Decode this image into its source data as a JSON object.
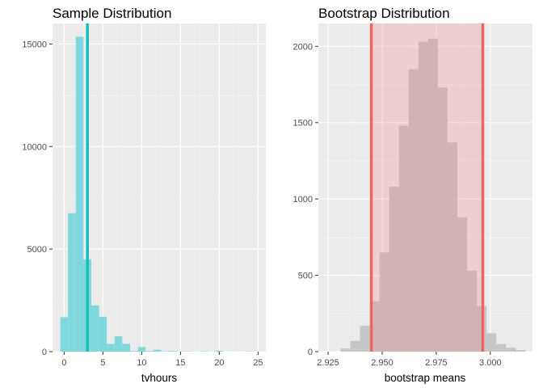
{
  "chart_data": [
    {
      "type": "bar",
      "title": "Sample Distribution",
      "xlabel": "tvhours",
      "ylabel": "",
      "xlim": [
        -1.5,
        26
      ],
      "ylim": [
        0,
        16000
      ],
      "grid": true,
      "xticks": [
        0,
        5,
        10,
        15,
        20,
        25
      ],
      "yticks": [
        0,
        5000,
        10000,
        15000
      ],
      "bin_width": 1,
      "bins": [
        {
          "x": 0,
          "y": 1680
        },
        {
          "x": 1,
          "y": 6750
        },
        {
          "x": 2,
          "y": 15350
        },
        {
          "x": 3,
          "y": 4500
        },
        {
          "x": 4,
          "y": 2250
        },
        {
          "x": 5,
          "y": 1700
        },
        {
          "x": 6,
          "y": 380
        },
        {
          "x": 7,
          "y": 750
        },
        {
          "x": 8,
          "y": 380
        },
        {
          "x": 9,
          "y": 30
        },
        {
          "x": 10,
          "y": 220
        },
        {
          "x": 11,
          "y": 30
        },
        {
          "x": 12,
          "y": 90
        },
        {
          "x": 13,
          "y": 15
        },
        {
          "x": 14,
          "y": 30
        },
        {
          "x": 15,
          "y": 10
        },
        {
          "x": 16,
          "y": 15
        },
        {
          "x": 17,
          "y": 5
        },
        {
          "x": 18,
          "y": 20
        },
        {
          "x": 19,
          "y": 5
        },
        {
          "x": 20,
          "y": 40
        },
        {
          "x": 21,
          "y": 5
        },
        {
          "x": 22,
          "y": 5
        },
        {
          "x": 23,
          "y": 5
        },
        {
          "x": 24,
          "y": 15
        }
      ],
      "vline": 3.0,
      "colors": {
        "bar": "#7FD8DC",
        "line": "#17BEBB"
      }
    },
    {
      "type": "bar",
      "title": "Bootstrap Distribution",
      "xlabel": "bootstrap means",
      "ylabel": "",
      "xlim": [
        2.9205,
        3.0195
      ],
      "ylim": [
        0,
        2150
      ],
      "grid": true,
      "xticks": [
        2.925,
        2.95,
        2.975,
        3.0
      ],
      "xtick_labels": [
        "2.925",
        "2.950",
        "2.975",
        "3.000"
      ],
      "yticks": [
        0,
        500,
        1000,
        1500,
        2000
      ],
      "bin_width": 0.0045,
      "bins": [
        {
          "x": 2.933,
          "y": 20
        },
        {
          "x": 2.9375,
          "y": 70
        },
        {
          "x": 2.942,
          "y": 170
        },
        {
          "x": 2.9465,
          "y": 330
        },
        {
          "x": 2.951,
          "y": 650
        },
        {
          "x": 2.9555,
          "y": 1080
        },
        {
          "x": 2.96,
          "y": 1480
        },
        {
          "x": 2.9645,
          "y": 1850
        },
        {
          "x": 2.969,
          "y": 2030
        },
        {
          "x": 2.9735,
          "y": 2050
        },
        {
          "x": 2.978,
          "y": 1730
        },
        {
          "x": 2.9825,
          "y": 1370
        },
        {
          "x": 2.987,
          "y": 880
        },
        {
          "x": 2.9915,
          "y": 530
        },
        {
          "x": 2.996,
          "y": 300
        },
        {
          "x": 3.0005,
          "y": 120
        },
        {
          "x": 3.005,
          "y": 50
        },
        {
          "x": 3.0095,
          "y": 25
        },
        {
          "x": 3.014,
          "y": 10
        }
      ],
      "ci": [
        2.945,
        2.9965
      ],
      "colors": {
        "bar": "#C6C6C6",
        "ci_fill": "#F08080",
        "ci_line": "#EF6461"
      }
    }
  ]
}
